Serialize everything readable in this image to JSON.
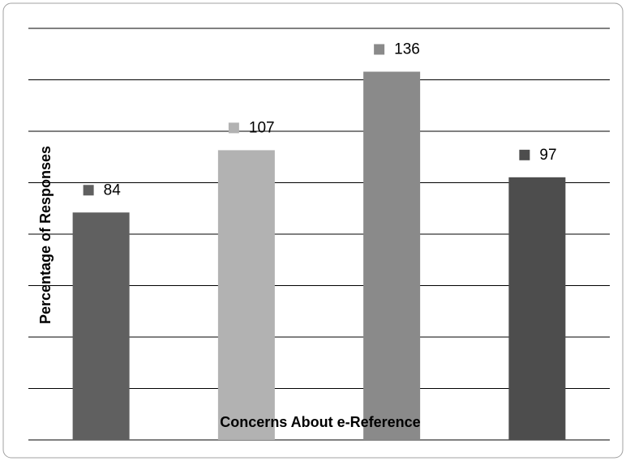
{
  "chart_data": {
    "type": "bar",
    "x_label": "Concerns About e-Reference",
    "y_label": "Percentage of Responses",
    "categories": [
      null,
      null,
      null,
      null
    ],
    "values": [
      84,
      107,
      136,
      97
    ],
    "colors": [
      "#606060",
      "#b2b2b2",
      "#8a8a8a",
      "#4d4d4d"
    ],
    "ylim": [
      0,
      152
    ],
    "yticks": [
      0,
      19,
      38,
      57,
      76,
      95,
      114,
      133,
      152
    ],
    "grid": true,
    "data_labels": true
  }
}
